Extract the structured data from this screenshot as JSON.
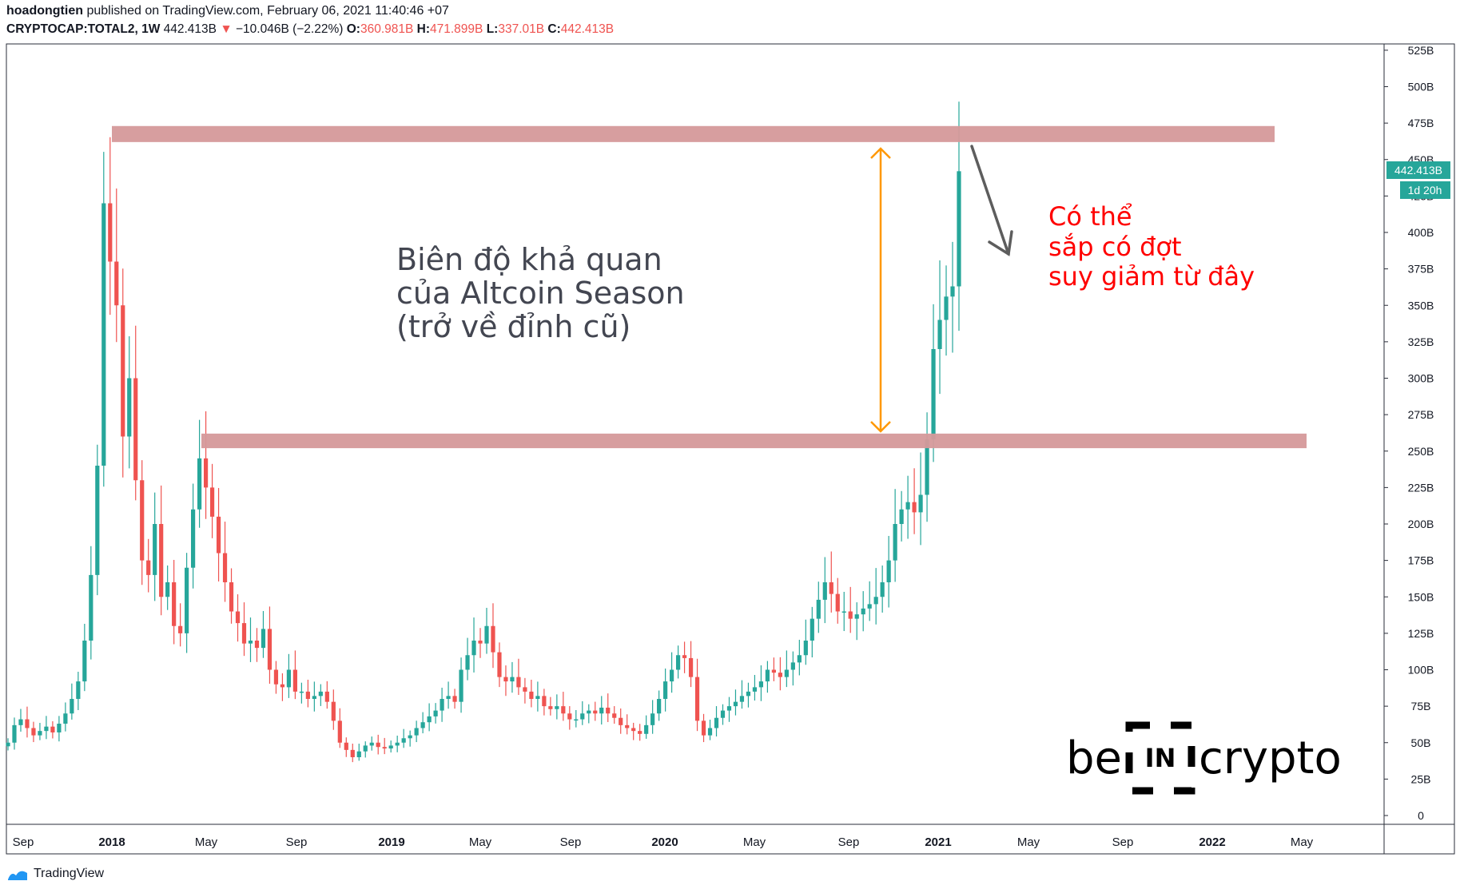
{
  "header": {
    "author": "hoadongtien",
    "published_text": "published on TradingView.com, February 06, 2021 11:40:46 +07",
    "symbol": "CRYPTOCAP:TOTAL2, 1W",
    "last": "442.413B",
    "change_arrow": "▼",
    "change": "−10.046B (−2.22%)",
    "open_label": "O:",
    "open": "360.981B",
    "high_label": "H:",
    "high": "471.899B",
    "low_label": "L:",
    "low": "337.01B",
    "close_label": "C:",
    "close": "442.413B"
  },
  "price_tag": {
    "value": "442.413B",
    "countdown": "1d 20h"
  },
  "footer": {
    "brand": "TradingView",
    "logo_icon": "tradingview-logo-icon"
  },
  "watermark": {
    "before": "be",
    "boxed": "IN",
    "after": "crypto"
  },
  "annotations": {
    "left_text": [
      "Biên độ khả quan",
      "của Altcoin Season",
      "(trở về đỉnh cũ)"
    ],
    "right_text": [
      "Có thể",
      "sắp có đợt",
      "suy giảm từ đây"
    ]
  },
  "colors": {
    "up": "#26a69a",
    "down": "#ef5350",
    "zone": "#d5999a",
    "arrow_range": "#ff9800",
    "arrow_down": "#5d5d5d",
    "right_text": "#ff0000",
    "left_text": "#434651",
    "tag_bg": "#26a69a"
  },
  "chart_data": {
    "type": "candlestick",
    "series_name": "CRYPTOCAP:TOTAL2, 1W",
    "ylim": [
      0,
      525
    ],
    "y_unit": "B",
    "y_ticks": [
      "0",
      "25B",
      "50B",
      "75B",
      "100B",
      "125B",
      "150B",
      "175B",
      "200B",
      "225B",
      "250B",
      "275B",
      "300B",
      "325B",
      "350B",
      "375B",
      "400B",
      "425B",
      "450B",
      "475B",
      "500B",
      "525B"
    ],
    "x_ticks": [
      "Sep",
      "2018",
      "May",
      "Sep",
      "2019",
      "May",
      "Sep",
      "2020",
      "May",
      "Sep",
      "2021",
      "May",
      "Sep",
      "2022",
      "May"
    ],
    "resistance_zone_top": [
      462,
      473
    ],
    "support_zone": [
      252,
      262
    ],
    "last_price": 442.413,
    "approx_weekly_closes": {
      "start": "2017-08",
      "closes": [
        50,
        62,
        66,
        60,
        55,
        58,
        61,
        57,
        63,
        70,
        80,
        92,
        120,
        165,
        240,
        420,
        380,
        350,
        260,
        300,
        230,
        175,
        165,
        200,
        150,
        160,
        130,
        125,
        170,
        210,
        245,
        225,
        205,
        180,
        160,
        140,
        132,
        118,
        120,
        115,
        128,
        100,
        90,
        88,
        100,
        85,
        85,
        80,
        82,
        85,
        78,
        65,
        50,
        45,
        40,
        44,
        48,
        50,
        47,
        46,
        48,
        50,
        53,
        55,
        60,
        64,
        68,
        72,
        80,
        82,
        78,
        100,
        110,
        120,
        118,
        130,
        112,
        95,
        92,
        95,
        88,
        85,
        80,
        82,
        75,
        73,
        75,
        70,
        66,
        66,
        70,
        72,
        70,
        74,
        70,
        67,
        62,
        60,
        58,
        56,
        62,
        70,
        80,
        92,
        100,
        110,
        108,
        95,
        65,
        55,
        60,
        67,
        72,
        75,
        78,
        82,
        85,
        88,
        92,
        100,
        98,
        95,
        100,
        105,
        110,
        120,
        135,
        148,
        160,
        152,
        140,
        140,
        135,
        138,
        142,
        145,
        150,
        160,
        175,
        200,
        210,
        215,
        208,
        220,
        258,
        320,
        340,
        356,
        363,
        442
      ]
    }
  }
}
